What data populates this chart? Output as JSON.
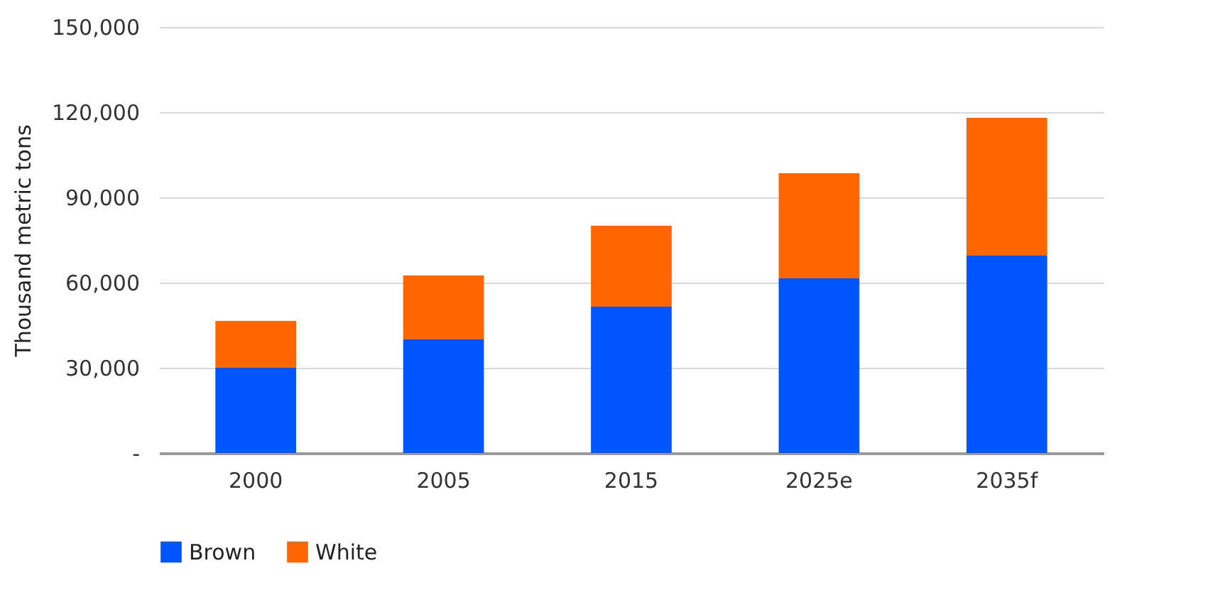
{
  "chart_data": {
    "type": "bar",
    "stacked": true,
    "ylabel": "Thousand metric tons",
    "categories": [
      "2000",
      "2005",
      "2015",
      "2025e",
      "2035f"
    ],
    "series": [
      {
        "name": "Brown",
        "color": "#0055ff",
        "values": [
          30000,
          40000,
          51500,
          61500,
          69500
        ]
      },
      {
        "name": "White",
        "color": "#ff6600",
        "values": [
          16500,
          22500,
          28500,
          37000,
          48500
        ]
      }
    ],
    "ylim": [
      0,
      150000
    ],
    "yticks": [
      {
        "value": 0,
        "label": "-"
      },
      {
        "value": 30000,
        "label": "30,000"
      },
      {
        "value": 60000,
        "label": "60,000"
      },
      {
        "value": 90000,
        "label": "90,000"
      },
      {
        "value": 120000,
        "label": "120,000"
      },
      {
        "value": 150000,
        "label": "150,000"
      }
    ],
    "grid": "y",
    "legend": "bottom"
  }
}
